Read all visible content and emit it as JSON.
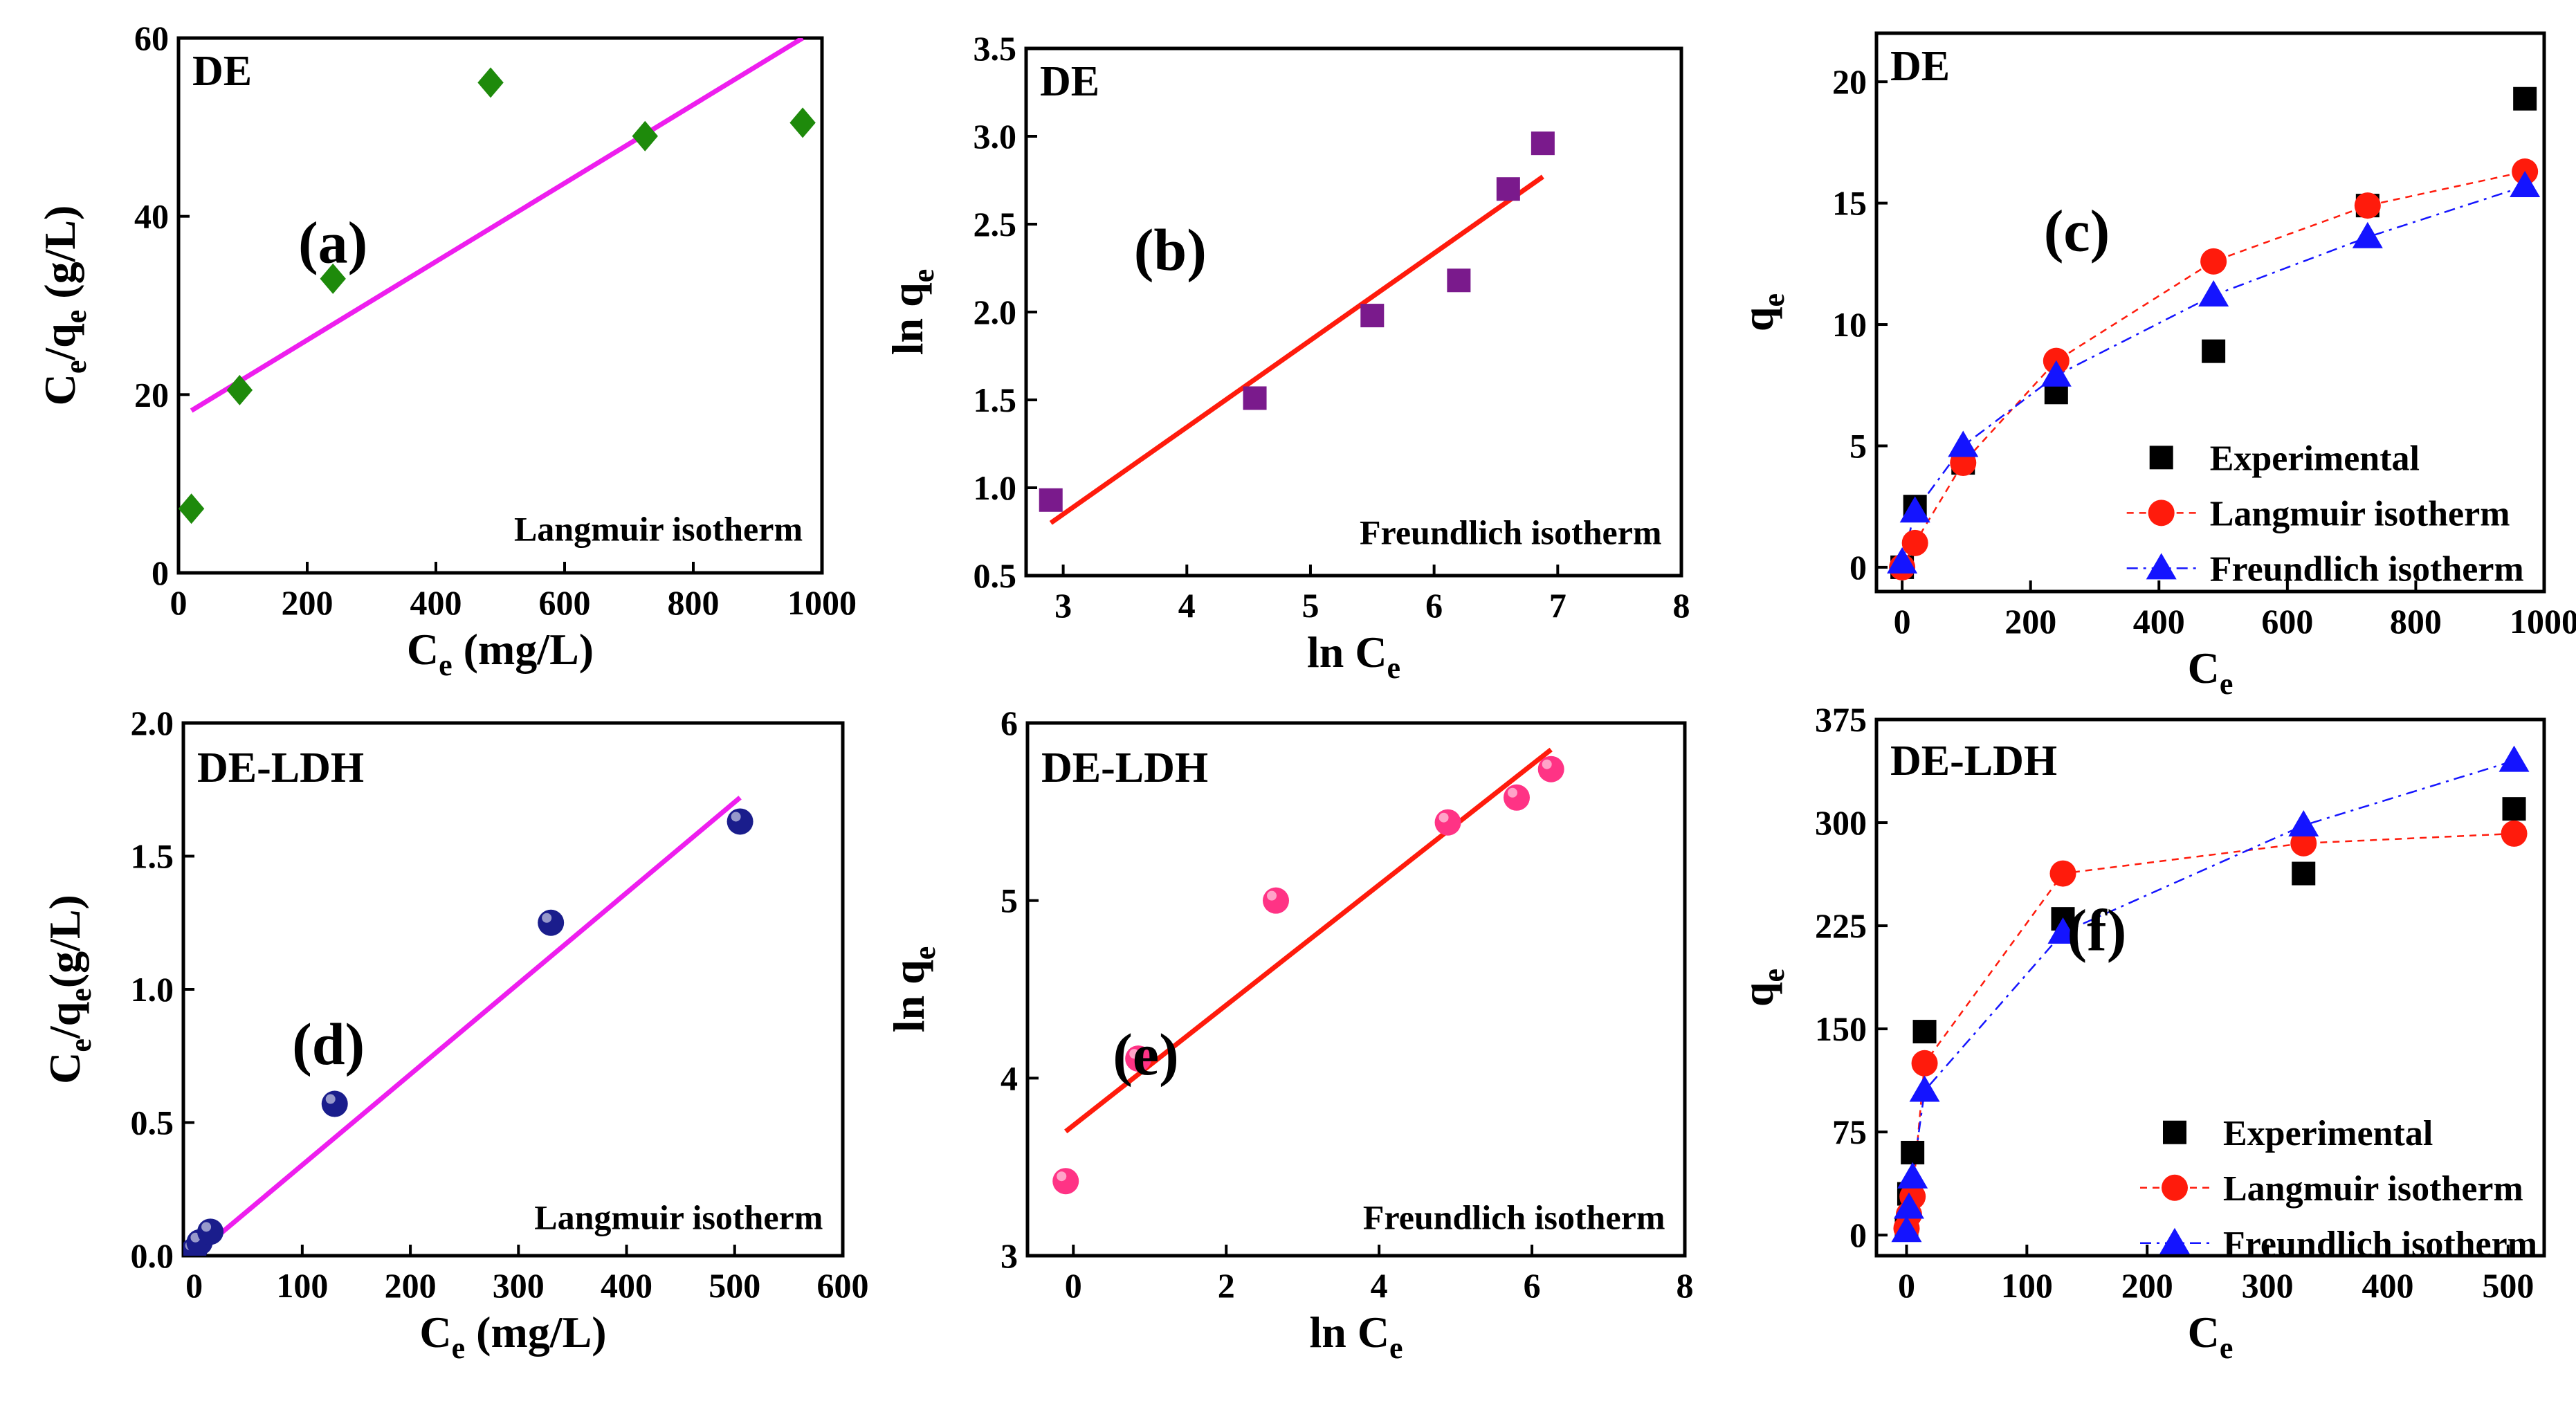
{
  "figure": {
    "background": "#ffffff",
    "axis_color": "#000000"
  },
  "chart_data": [
    {
      "id": "a",
      "type": "scatter",
      "panel_letter": "(a)",
      "tag": "DE",
      "note": "Langmuir isotherm",
      "xlabel": {
        "main": "C",
        "sub": "e",
        "rest": " (mg/L)"
      },
      "ylabel": {
        "parts": [
          [
            "C",
            ""
          ],
          [
            "e",
            "sub"
          ],
          [
            "/q",
            ""
          ],
          [
            "e",
            "sub"
          ],
          [
            " (g/L)",
            ""
          ]
        ]
      },
      "xlim": [
        0,
        1000
      ],
      "ylim": [
        0,
        60
      ],
      "xticks": [
        0,
        200,
        400,
        600,
        800,
        1000
      ],
      "yticks": [
        0,
        20,
        40,
        60
      ],
      "points": {
        "x": [
          20,
          95,
          240,
          485,
          725,
          970
        ],
        "y": [
          7.2,
          20.5,
          33,
          55,
          49,
          50.5
        ],
        "marker": "diamond",
        "color": "#1e8a0b"
      },
      "fit": {
        "x": [
          20,
          970
        ],
        "y": [
          18.2,
          60
        ],
        "color": "#ee1eee"
      }
    },
    {
      "id": "b",
      "type": "scatter",
      "panel_letter": "(b)",
      "tag": "DE",
      "note": "Freundlich isotherm",
      "xlabel": {
        "main": "ln C",
        "sub": "e",
        "rest": ""
      },
      "ylabel": {
        "parts": [
          [
            "ln q",
            ""
          ],
          [
            "e",
            "sub"
          ]
        ]
      },
      "xlim": [
        2.7,
        8
      ],
      "ylim": [
        0.5,
        3.5
      ],
      "xticks": [
        3,
        4,
        5,
        6,
        7,
        8
      ],
      "yticks": [
        0.5,
        1.0,
        1.5,
        2.0,
        2.5,
        3.0,
        3.5
      ],
      "ytick_decimals": 1,
      "points": {
        "x": [
          2.9,
          4.55,
          5.5,
          6.2,
          6.6,
          6.88
        ],
        "y": [
          0.93,
          1.51,
          1.98,
          2.18,
          2.7,
          2.96
        ],
        "marker": "square",
        "color": "#7a1a8c"
      },
      "fit": {
        "x": [
          2.9,
          6.88
        ],
        "y": [
          0.8,
          2.77
        ],
        "color": "#ff1b0c"
      }
    },
    {
      "id": "c",
      "type": "scatter",
      "tag": "DE",
      "panel_letter": "(c)",
      "note": "",
      "xlabel": {
        "main": "C",
        "sub": "e",
        "rest": ""
      },
      "ylabel": {
        "parts": [
          [
            "q",
            ""
          ],
          [
            "e",
            "sub"
          ]
        ]
      },
      "xlim": [
        -40,
        1000
      ],
      "ylim": [
        -1,
        22
      ],
      "xticks": [
        0,
        200,
        400,
        600,
        800,
        1000
      ],
      "yticks": [
        0,
        5,
        10,
        15,
        20
      ],
      "series": [
        {
          "name": "Experimental",
          "marker": "square",
          "color": "#000000",
          "x": [
            0,
            20,
            95,
            240,
            485,
            725,
            970
          ],
          "y": [
            0,
            2.5,
            4.3,
            7.2,
            8.9,
            14.9,
            19.3
          ]
        },
        {
          "name": "Langmuir isotherm",
          "marker": "circle",
          "color": "#ff1b0c",
          "line": "dashed",
          "x": [
            0,
            20,
            95,
            240,
            485,
            725,
            970
          ],
          "y": [
            0,
            1,
            4.3,
            8.5,
            12.6,
            14.9,
            16.3
          ]
        },
        {
          "name": "Freundlich isotherm",
          "marker": "triangle",
          "color": "#1414ff",
          "line": "dashdot",
          "x": [
            0,
            20,
            95,
            240,
            485,
            725,
            970
          ],
          "y": [
            0.2,
            2.3,
            5,
            7.9,
            11.2,
            13.6,
            15.7
          ]
        }
      ],
      "legend_position": "bottom-right"
    },
    {
      "id": "d",
      "type": "scatter",
      "panel_letter": "(d)",
      "tag": "DE-LDH",
      "note": "Langmuir isotherm",
      "xlabel": {
        "main": "C",
        "sub": "e",
        "rest": " (mg/L)"
      },
      "ylabel": {
        "parts": [
          [
            "C",
            ""
          ],
          [
            "e",
            "sub"
          ],
          [
            "/q",
            ""
          ],
          [
            "e",
            "sub"
          ],
          [
            "(g/L)",
            ""
          ]
        ]
      },
      "xlim": [
        -10,
        600
      ],
      "ylim": [
        0,
        2.0
      ],
      "xticks": [
        0,
        100,
        200,
        300,
        400,
        500,
        600
      ],
      "yticks": [
        0.0,
        0.5,
        1.0,
        1.5,
        2.0
      ],
      "ytick_decimals": 1,
      "points": {
        "x": [
          0,
          5,
          15,
          130,
          330,
          505
        ],
        "y": [
          0.02,
          0.05,
          0.09,
          0.57,
          1.25,
          1.63
        ],
        "marker": "sphere",
        "color": "#1a1d8c"
      },
      "fit": {
        "x": [
          0,
          505
        ],
        "y": [
          0,
          1.72
        ],
        "color": "#ee1eee"
      }
    },
    {
      "id": "e",
      "type": "scatter",
      "panel_letter": "(e)",
      "tag": "DE-LDH",
      "note": "Freundlich isotherm",
      "xlabel": {
        "main": "ln C",
        "sub": "e",
        "rest": ""
      },
      "ylabel": {
        "parts": [
          [
            "ln q",
            ""
          ],
          [
            "e",
            "sub"
          ]
        ]
      },
      "xlim": [
        -0.6,
        8
      ],
      "ylim": [
        3,
        6
      ],
      "xticks": [
        0,
        2,
        4,
        6,
        8
      ],
      "yticks": [
        3,
        4,
        5,
        6
      ],
      "points": {
        "x": [
          -0.1,
          0.85,
          2.65,
          4.9,
          5.8,
          6.25
        ],
        "y": [
          3.42,
          4.11,
          5.0,
          5.44,
          5.58,
          5.74
        ],
        "marker": "sphere",
        "color": "#ff3385"
      },
      "fit": {
        "x": [
          -0.1,
          6.25
        ],
        "y": [
          3.7,
          5.85
        ],
        "color": "#ff1b0c"
      }
    },
    {
      "id": "f",
      "type": "scatter",
      "tag": "DE-LDH",
      "panel_letter": "(f)",
      "note": "",
      "xlabel": {
        "main": "C",
        "sub": "e",
        "rest": ""
      },
      "ylabel": {
        "parts": [
          [
            "q",
            ""
          ],
          [
            "e",
            "sub"
          ]
        ]
      },
      "xlim": [
        -25,
        530
      ],
      "ylim": [
        -15,
        375
      ],
      "xticks": [
        0,
        100,
        200,
        300,
        400,
        500
      ],
      "yticks": [
        0,
        75,
        150,
        225,
        300,
        375
      ],
      "series": [
        {
          "name": "Experimental",
          "marker": "square",
          "color": "#000000",
          "x": [
            0,
            2,
            5,
            15,
            130,
            330,
            505
          ],
          "y": [
            5,
            30,
            60,
            148,
            230,
            263,
            310
          ]
        },
        {
          "name": "Langmuir isotherm",
          "marker": "circle",
          "color": "#ff1b0c",
          "line": "dashed",
          "x": [
            0,
            2,
            5,
            15,
            130,
            330,
            505
          ],
          "y": [
            5,
            15,
            28,
            125,
            263,
            285,
            292
          ]
        },
        {
          "name": "Freundlich isotherm",
          "marker": "triangle",
          "color": "#1414ff",
          "line": "dashdot",
          "x": [
            0,
            2,
            5,
            15,
            130,
            330,
            505
          ],
          "y": [
            3,
            20,
            42,
            105,
            220,
            298,
            345
          ]
        }
      ],
      "legend_position": "bottom-right"
    }
  ]
}
